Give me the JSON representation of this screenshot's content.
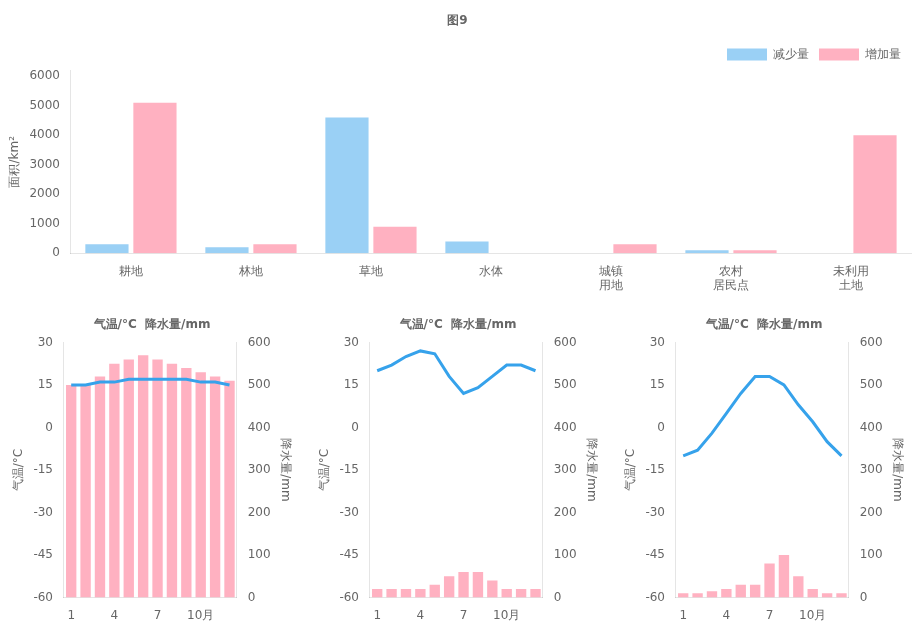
{
  "chart_data": [
    {
      "type": "bar",
      "title": "图9",
      "y_label": "面积/km²",
      "categories": [
        "耕地",
        "林地",
        "草地",
        "水体",
        "城镇\n用地",
        "农村\n居民点",
        "未利用\n土地"
      ],
      "series": [
        {
          "name": "减少量",
          "values": [
            300,
            200,
            4600,
            400,
            0,
            100,
            0
          ]
        },
        {
          "name": "增加量",
          "values": [
            5100,
            300,
            900,
            0,
            300,
            100,
            4000
          ]
        }
      ],
      "ylim": [
        0,
        6200
      ],
      "yticks": [
        0,
        1000,
        2000,
        3000,
        4000,
        5000,
        6000
      ],
      "legend": "upper right",
      "grid": false
    },
    {
      "type": "bar",
      "title": "气温/°C  降水量/mm",
      "y_label": "气温/°C",
      "y2_label": "降水量/mm",
      "categories": [
        "1",
        null,
        null,
        "4",
        null,
        null,
        "7",
        null,
        null,
        "10月",
        null,
        null
      ],
      "series": [
        {
          "type": "line",
          "values": [
            15,
            15,
            16,
            16,
            17,
            17,
            17,
            17,
            17,
            16,
            16,
            15
          ]
        },
        {
          "type": "bar",
          "axis": "y2",
          "values": [
            500,
            500,
            520,
            550,
            560,
            570,
            560,
            550,
            540,
            530,
            520,
            510
          ]
        }
      ],
      "ylim": [
        -60,
        30
      ],
      "yticks": [
        -60,
        -45,
        -30,
        -15,
        0,
        15,
        30
      ],
      "y2lim": [
        0,
        600
      ],
      "y2ticks": [
        0,
        100,
        200,
        300,
        400,
        500,
        600
      ],
      "grid": false
    },
    {
      "type": "bar",
      "title": "气温/°C  降水量/mm",
      "y_label": "气温/°C",
      "y2_label": "降水量/mm",
      "categories": [
        "1",
        null,
        null,
        "4",
        null,
        null,
        "7",
        null,
        null,
        "10月",
        null,
        null
      ],
      "series": [
        {
          "type": "line",
          "values": [
            20,
            22,
            25,
            27,
            26,
            18,
            12,
            14,
            18,
            22,
            22,
            20
          ]
        },
        {
          "type": "bar",
          "axis": "y2",
          "values": [
            20,
            20,
            20,
            20,
            30,
            50,
            60,
            60,
            40,
            20,
            20,
            20
          ]
        }
      ],
      "ylim": [
        -60,
        30
      ],
      "yticks": [
        -60,
        -45,
        -30,
        -15,
        0,
        15,
        30
      ],
      "y2lim": [
        0,
        600
      ],
      "y2ticks": [
        0,
        100,
        200,
        300,
        400,
        500,
        600
      ],
      "grid": false
    },
    {
      "type": "bar",
      "title": "气温/°C  降水量/mm",
      "y_label": "气温/°C",
      "y2_label": "降水量/mm",
      "categories": [
        "1",
        null,
        null,
        "4",
        null,
        null,
        "7",
        null,
        null,
        "10月",
        null,
        null
      ],
      "series": [
        {
          "type": "line",
          "values": [
            -10,
            -8,
            -2,
            5,
            12,
            18,
            18,
            15,
            8,
            2,
            -5,
            -10
          ]
        },
        {
          "type": "bar",
          "axis": "y2",
          "values": [
            10,
            10,
            15,
            20,
            30,
            30,
            80,
            100,
            50,
            20,
            10,
            10
          ]
        }
      ],
      "ylim": [
        -60,
        30
      ],
      "yticks": [
        -60,
        -45,
        -30,
        -15,
        0,
        15,
        30
      ],
      "y2lim": [
        0,
        600
      ],
      "y2ticks": [
        0,
        100,
        200,
        300,
        400,
        500,
        600
      ],
      "grid": false
    }
  ]
}
